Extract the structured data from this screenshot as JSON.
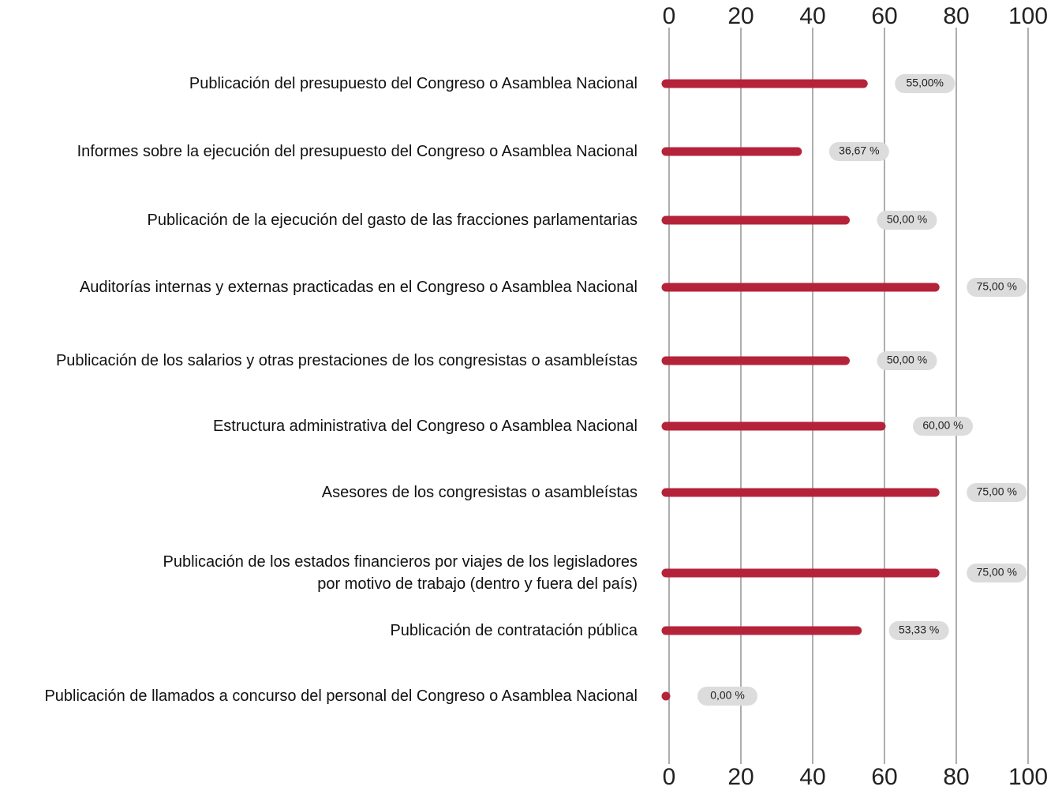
{
  "chart_data": {
    "type": "bar",
    "orientation": "horizontal",
    "categories": [
      "Publicación del presupuesto del Congreso o Asamblea Nacional",
      "Informes sobre la ejecución del presupuesto del Congreso o Asamblea Nacional",
      "Publicación de la ejecución del gasto de las fracciones parlamentarias",
      "Auditorías internas y externas practicadas en el Congreso o Asamblea Nacional",
      "Publicación de los salarios y otras prestaciones de los congresistas o asambleístas",
      "Estructura administrativa del Congreso o Asamblea Nacional",
      "Asesores de los congresistas o asambleístas",
      "Publicación de los estados financieros por viajes de los legisladores\npor motivo de trabajo (dentro y fuera del país)",
      "Publicación de contratación pública",
      "Publicación de llamados a concurso del personal del Congreso o Asamblea Nacional"
    ],
    "values": [
      55,
      36.67,
      50,
      75,
      50,
      60,
      75,
      75,
      53.33,
      0
    ],
    "value_labels": [
      "55,00%",
      "36,67 %",
      "50,00 %",
      "75,00 %",
      "50,00 %",
      "60,00 %",
      "75,00 %",
      "75,00 %",
      "53,33 %",
      "0,00 %"
    ],
    "color": "#b5233a",
    "xlim": [
      0,
      100
    ],
    "xticks": [
      0,
      20,
      40,
      60,
      80,
      100
    ],
    "grid": true
  }
}
